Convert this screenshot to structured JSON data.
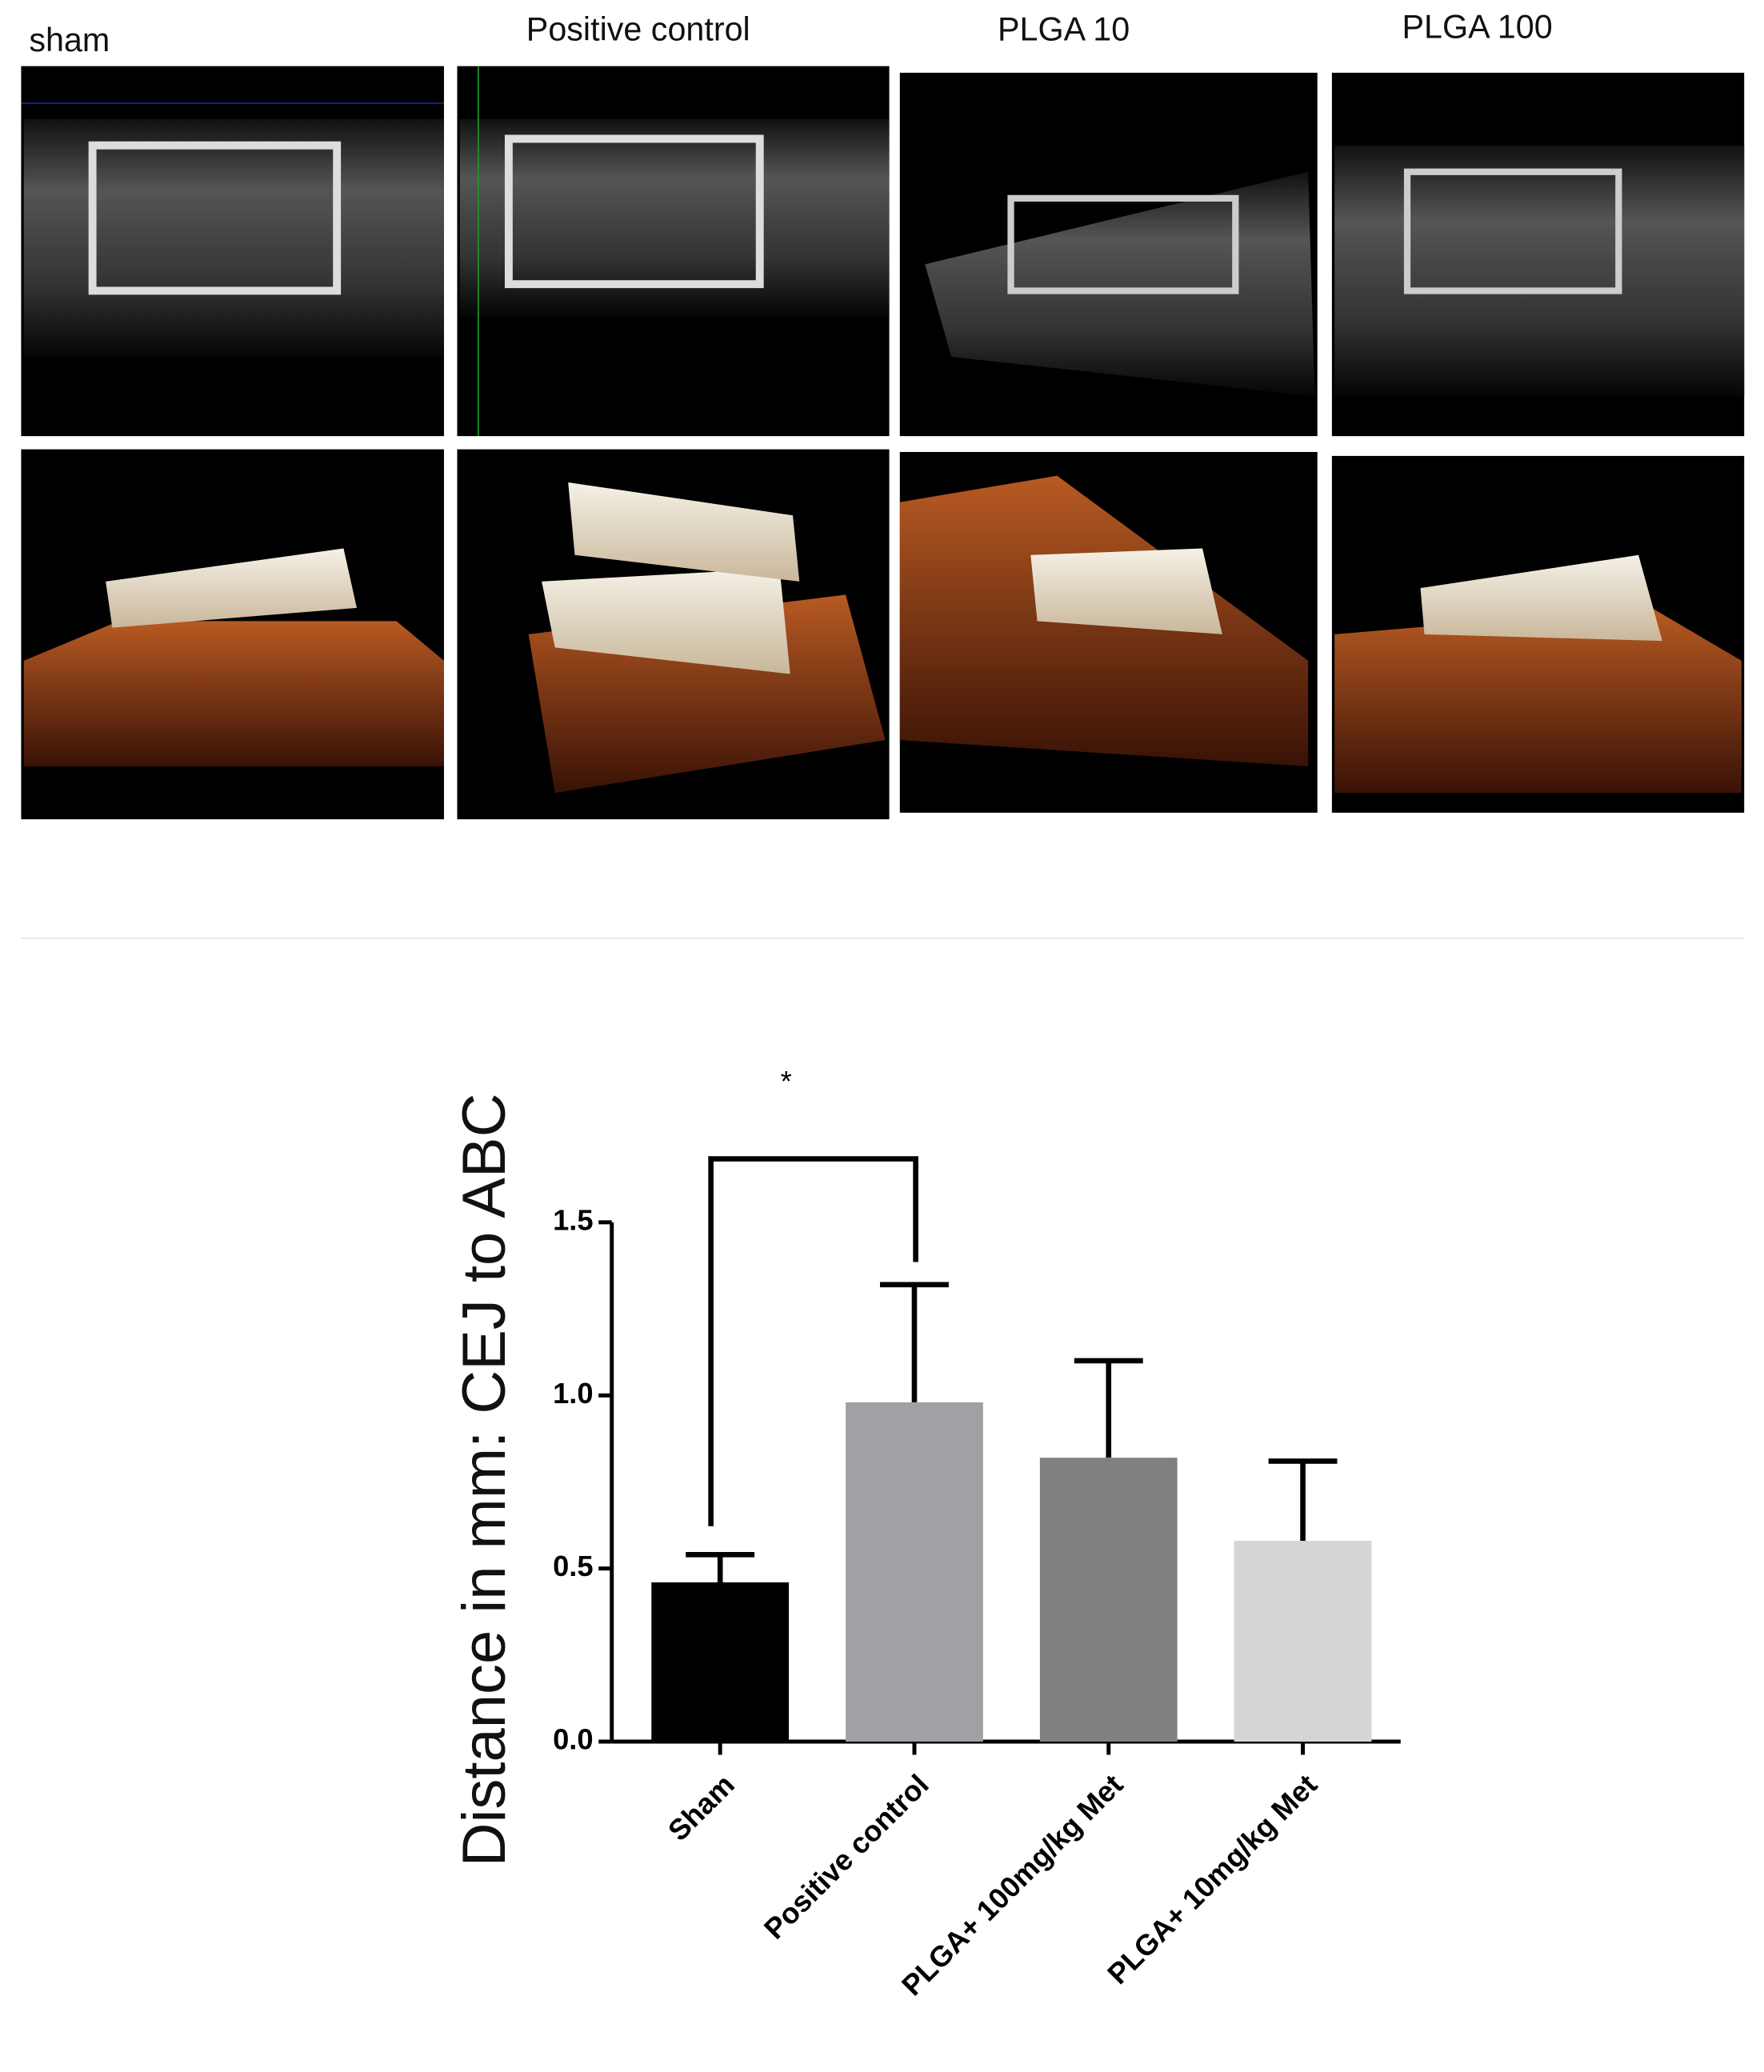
{
  "panels": {
    "labels": [
      "sham",
      "Positive control",
      "PLGA 10",
      "PLGA 100"
    ]
  },
  "chart_data": {
    "type": "bar",
    "y_label": "Distance in mm: CEJ to ABC",
    "categories": [
      "Sham",
      "Positive control",
      "PLGA+ 100mg/kg Met",
      "PLGA+ 10mg/kg Met"
    ],
    "values": [
      0.46,
      0.98,
      0.82,
      0.58
    ],
    "errors": [
      0.08,
      0.34,
      0.28,
      0.23
    ],
    "colors": [
      "#000000",
      "#a0a0a5",
      "#808080",
      "#d5d5d5"
    ],
    "ylim": [
      0,
      1.5
    ],
    "yticks": [
      {
        "value": 0,
        "label": "0.0"
      },
      0.5,
      {
        "value": 1,
        "label": "1.0"
      },
      1.5
    ],
    "annotation": "*"
  }
}
